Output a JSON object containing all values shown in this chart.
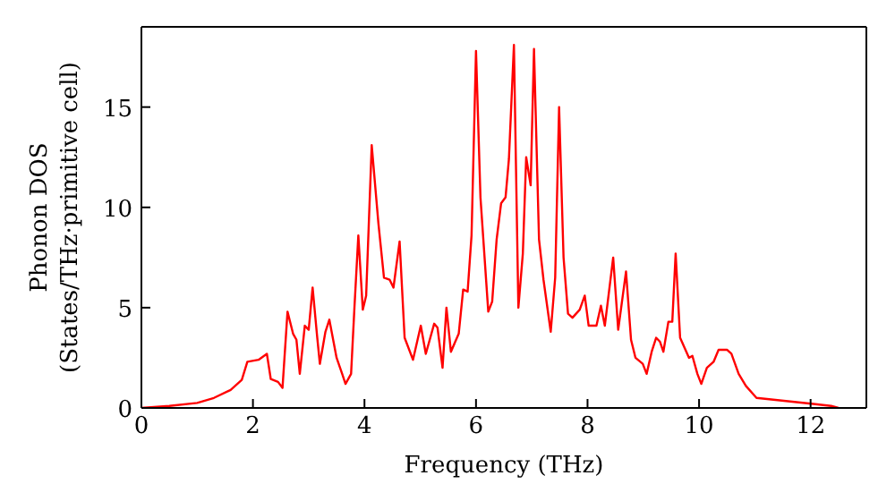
{
  "chart_data": {
    "type": "line",
    "xlabel": "Frequency (THz)",
    "ylabel": "Phonon DOS\n(States/THz·primitive cell)",
    "xlim": [
      0,
      13
    ],
    "ylim": [
      0,
      19
    ],
    "xticks": [
      0,
      2,
      4,
      6,
      8,
      10,
      12
    ],
    "yticks": [
      0,
      5,
      10,
      15
    ],
    "grid": false,
    "legend": false,
    "marker": "none",
    "line_style": "solid",
    "series": [
      {
        "color": "#ff0000",
        "x": [
          0,
          0.5,
          1.0,
          1.3,
          1.6,
          1.8,
          1.9,
          2.1,
          2.25,
          2.32,
          2.45,
          2.53,
          2.62,
          2.72,
          2.78,
          2.84,
          2.93,
          3.0,
          3.07,
          3.15,
          3.2,
          3.3,
          3.37,
          3.5,
          3.6,
          3.66,
          3.76,
          3.82,
          3.89,
          3.97,
          4.03,
          4.13,
          4.25,
          4.35,
          4.45,
          4.52,
          4.63,
          4.72,
          4.87,
          5.01,
          5.1,
          5.25,
          5.31,
          5.4,
          5.47,
          5.55,
          5.69,
          5.77,
          5.85,
          5.92,
          6.0,
          6.08,
          6.22,
          6.29,
          6.37,
          6.45,
          6.53,
          6.59,
          6.68,
          6.76,
          6.84,
          6.9,
          6.98,
          7.04,
          7.13,
          7.21,
          7.34,
          7.42,
          7.49,
          7.57,
          7.65,
          7.73,
          7.86,
          7.95,
          8.02,
          8.16,
          8.24,
          8.31,
          8.46,
          8.55,
          8.69,
          8.78,
          8.86,
          8.99,
          9.06,
          9.15,
          9.23,
          9.3,
          9.36,
          9.45,
          9.52,
          9.58,
          9.66,
          9.82,
          9.88,
          9.97,
          10.04,
          10.14,
          10.26,
          10.35,
          10.5,
          10.58,
          10.71,
          10.84,
          11.03,
          12.05,
          12.37,
          12.5
        ],
        "values": [
          0,
          0.1,
          0.25,
          0.5,
          0.9,
          1.4,
          2.3,
          2.4,
          2.7,
          1.44,
          1.3,
          1.0,
          4.8,
          3.7,
          3.4,
          1.7,
          4.1,
          3.9,
          6.0,
          3.6,
          2.2,
          3.8,
          4.4,
          2.5,
          1.7,
          1.2,
          1.7,
          5.0,
          8.6,
          4.9,
          5.6,
          13.1,
          9.2,
          6.5,
          6.4,
          6.0,
          8.3,
          3.5,
          2.4,
          4.1,
          2.7,
          4.2,
          4.0,
          2.0,
          5.0,
          2.8,
          3.7,
          5.9,
          5.8,
          8.6,
          17.8,
          10.5,
          4.8,
          5.3,
          8.4,
          10.2,
          10.5,
          12.4,
          18.1,
          5.0,
          7.7,
          12.5,
          11.1,
          17.9,
          8.4,
          6.4,
          3.8,
          6.5,
          15.0,
          7.5,
          4.7,
          4.5,
          4.9,
          5.6,
          4.1,
          4.1,
          5.1,
          4.1,
          7.5,
          3.9,
          6.8,
          3.4,
          2.5,
          2.2,
          1.7,
          2.8,
          3.5,
          3.3,
          2.8,
          4.3,
          4.3,
          7.7,
          3.5,
          2.5,
          2.6,
          1.7,
          1.2,
          2.0,
          2.3,
          2.9,
          2.9,
          2.7,
          1.7,
          1.1,
          0.5,
          0.2,
          0.1,
          0
        ]
      }
    ]
  }
}
